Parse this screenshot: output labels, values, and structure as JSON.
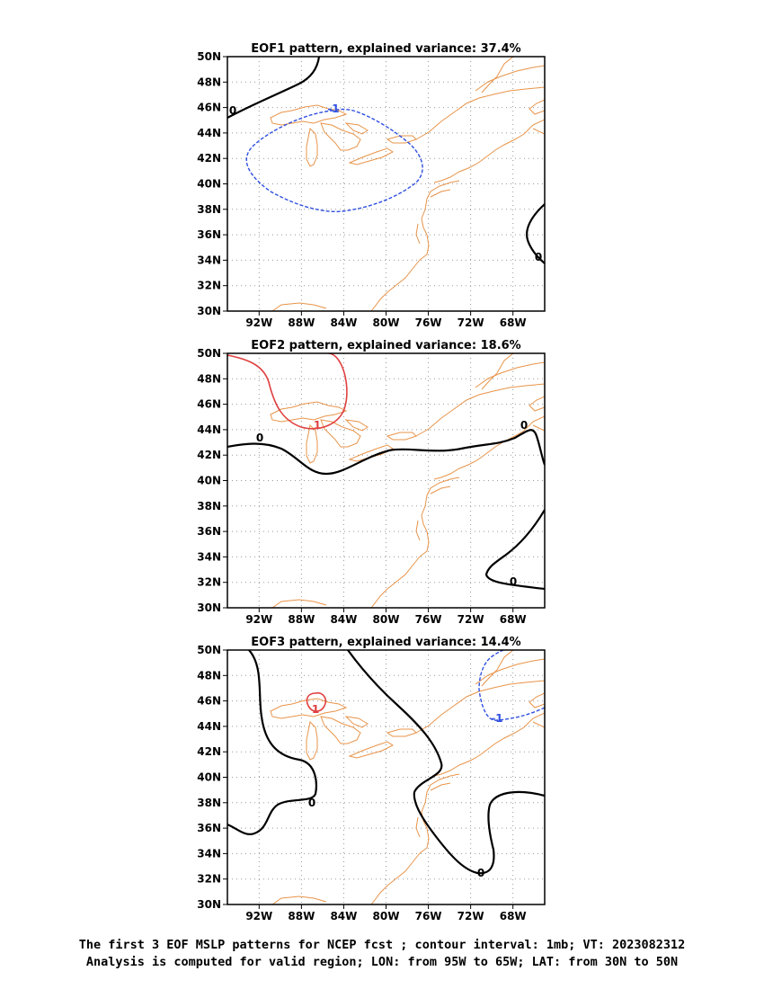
{
  "panels": [
    {
      "title": "EOF1 pattern, explained variance: 37.4%",
      "labels": [
        {
          "text": "0",
          "color": "#000000"
        },
        {
          "text": "-1",
          "color": "#3050e0"
        },
        {
          "text": "0",
          "color": "#000000"
        }
      ]
    },
    {
      "title": "EOF2 pattern, explained variance: 18.6%",
      "labels": [
        {
          "text": "0",
          "color": "#000000"
        },
        {
          "text": "1",
          "color": "#e04040"
        },
        {
          "text": "0",
          "color": "#000000"
        },
        {
          "text": "0",
          "color": "#000000"
        }
      ]
    },
    {
      "title": "EOF3 pattern, explained variance: 14.4%",
      "labels": [
        {
          "text": "1",
          "color": "#e04040"
        },
        {
          "text": "0",
          "color": "#000000"
        },
        {
          "text": "-1",
          "color": "#3050e0"
        },
        {
          "text": "0",
          "color": "#000000"
        }
      ]
    }
  ],
  "y_ticks": [
    "50N",
    "48N",
    "46N",
    "44N",
    "42N",
    "40N",
    "38N",
    "36N",
    "34N",
    "32N",
    "30N"
  ],
  "x_ticks": [
    "92W",
    "88W",
    "84W",
    "80W",
    "76W",
    "72W",
    "68W"
  ],
  "caption": {
    "line1": "The first 3 EOF MSLP patterns for NCEP fcst ; contour interval: 1mb; VT: 2023082312",
    "line2": "Analysis is computed for valid region; LON: from 95W to 65W; LAT: from 30N to 50N"
  },
  "colors": {
    "coast": "#e8944a",
    "zero": "#000000",
    "positive": "#e04040",
    "negative": "#3050e0",
    "grid": "#999999"
  }
}
